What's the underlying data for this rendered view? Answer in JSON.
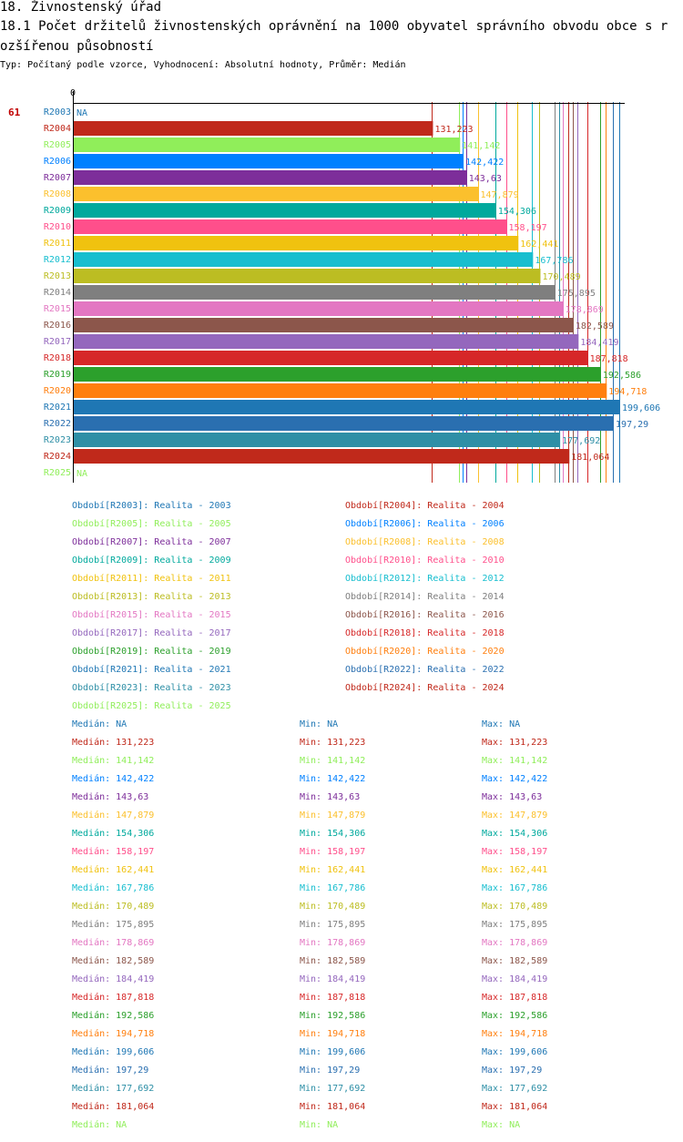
{
  "title": "18. Živnostenský úřad",
  "subtitle": "18.1 Počet držitelů živnostenských oprávnění na 1000 obyvatel správního obvodu obce s rozšířenou působností",
  "description": "Typ: Počítaný podle vzorce, Vyhodnocení: Absolutní hodnoty, Průměr: Medián",
  "rank": "61",
  "chart_data": {
    "type": "bar",
    "orientation": "horizontal",
    "title": "18.1 Počet držitelů živnostenských oprávnění na 1000 obyvatel správního obvodu obce s rozšířenou působností",
    "axis_zero_label": "0",
    "x_min": 0,
    "categories": [
      "R2003",
      "R2004",
      "R2005",
      "R2006",
      "R2007",
      "R2008",
      "R2009",
      "R2010",
      "R2011",
      "R2012",
      "R2013",
      "R2014",
      "R2015",
      "R2016",
      "R2017",
      "R2018",
      "R2019",
      "R2020",
      "R2021",
      "R2022",
      "R2023",
      "R2024",
      "R2025"
    ],
    "values": [
      null,
      131.223,
      141.142,
      142.422,
      143.63,
      147.879,
      154.306,
      158.197,
      162.441,
      167.786,
      170.489,
      175.895,
      178.869,
      182.589,
      184.419,
      187.818,
      192.586,
      194.718,
      199.606,
      197.29,
      177.692,
      181.064,
      null
    ],
    "value_labels": [
      "NA",
      "131,223",
      "141,142",
      "142,422",
      "143,63",
      "147,879",
      "154,306",
      "158,197",
      "162,441",
      "167,786",
      "170,489",
      "175,895",
      "178,869",
      "182,589",
      "184,419",
      "187,818",
      "192,586",
      "194,718",
      "199,606",
      "197,29",
      "177,692",
      "181,064",
      "NA"
    ],
    "colors": [
      "#1f77b4",
      "#c0291b",
      "#90ee5a",
      "#0080ff",
      "#7d2e9a",
      "#fbc02d",
      "#00a99d",
      "#ff4f8b",
      "#f0c20f",
      "#17becf",
      "#bcbd22",
      "#7f7f7f",
      "#e377c2",
      "#8c564b",
      "#9467bd",
      "#d62728",
      "#2ca02c",
      "#ff7f0e",
      "#1f77b4",
      "#2a6fb0",
      "#2e8fa6",
      "#c0291b",
      "#90ee5a"
    ]
  },
  "legend": [
    {
      "label": "Období[R2003]: Realita - 2003",
      "color": "#1f77b4"
    },
    {
      "label": "Období[R2004]: Realita - 2004",
      "color": "#c0291b"
    },
    {
      "label": "Období[R2005]: Realita - 2005",
      "color": "#90ee5a"
    },
    {
      "label": "Období[R2006]: Realita - 2006",
      "color": "#0080ff"
    },
    {
      "label": "Období[R2007]: Realita - 2007",
      "color": "#7d2e9a"
    },
    {
      "label": "Období[R2008]: Realita - 2008",
      "color": "#fbc02d"
    },
    {
      "label": "Období[R2009]: Realita - 2009",
      "color": "#00a99d"
    },
    {
      "label": "Období[R2010]: Realita - 2010",
      "color": "#ff4f8b"
    },
    {
      "label": "Období[R2011]: Realita - 2011",
      "color": "#f0c20f"
    },
    {
      "label": "Období[R2012]: Realita - 2012",
      "color": "#17becf"
    },
    {
      "label": "Období[R2013]: Realita - 2013",
      "color": "#bcbd22"
    },
    {
      "label": "Období[R2014]: Realita - 2014",
      "color": "#7f7f7f"
    },
    {
      "label": "Období[R2015]: Realita - 2015",
      "color": "#e377c2"
    },
    {
      "label": "Období[R2016]: Realita - 2016",
      "color": "#8c564b"
    },
    {
      "label": "Období[R2017]: Realita - 2017",
      "color": "#9467bd"
    },
    {
      "label": "Období[R2018]: Realita - 2018",
      "color": "#d62728"
    },
    {
      "label": "Období[R2019]: Realita - 2019",
      "color": "#2ca02c"
    },
    {
      "label": "Období[R2020]: Realita - 2020",
      "color": "#ff7f0e"
    },
    {
      "label": "Období[R2021]: Realita - 2021",
      "color": "#1f77b4"
    },
    {
      "label": "Období[R2022]: Realita - 2022",
      "color": "#2a6fb0"
    },
    {
      "label": "Období[R2023]: Realita - 2023",
      "color": "#2e8fa6"
    },
    {
      "label": "Období[R2024]: Realita - 2024",
      "color": "#c0291b"
    },
    {
      "label": "Období[R2025]: Realita - 2025",
      "color": "#90ee5a"
    }
  ],
  "stats_labels": {
    "median": "Medián: ",
    "min": "Min: ",
    "max": "Max: "
  },
  "stats": [
    {
      "median": "NA",
      "min": "NA",
      "max": "NA"
    },
    {
      "median": "131,223",
      "min": "131,223",
      "max": "131,223"
    },
    {
      "median": "141,142",
      "min": "141,142",
      "max": "141,142"
    },
    {
      "median": "142,422",
      "min": "142,422",
      "max": "142,422"
    },
    {
      "median": "143,63",
      "min": "143,63",
      "max": "143,63"
    },
    {
      "median": "147,879",
      "min": "147,879",
      "max": "147,879"
    },
    {
      "median": "154,306",
      "min": "154,306",
      "max": "154,306"
    },
    {
      "median": "158,197",
      "min": "158,197",
      "max": "158,197"
    },
    {
      "median": "162,441",
      "min": "162,441",
      "max": "162,441"
    },
    {
      "median": "167,786",
      "min": "167,786",
      "max": "167,786"
    },
    {
      "median": "170,489",
      "min": "170,489",
      "max": "170,489"
    },
    {
      "median": "175,895",
      "min": "175,895",
      "max": "175,895"
    },
    {
      "median": "178,869",
      "min": "178,869",
      "max": "178,869"
    },
    {
      "median": "182,589",
      "min": "182,589",
      "max": "182,589"
    },
    {
      "median": "184,419",
      "min": "184,419",
      "max": "184,419"
    },
    {
      "median": "187,818",
      "min": "187,818",
      "max": "187,818"
    },
    {
      "median": "192,586",
      "min": "192,586",
      "max": "192,586"
    },
    {
      "median": "194,718",
      "min": "194,718",
      "max": "194,718"
    },
    {
      "median": "199,606",
      "min": "199,606",
      "max": "199,606"
    },
    {
      "median": "197,29",
      "min": "197,29",
      "max": "197,29"
    },
    {
      "median": "177,692",
      "min": "177,692",
      "max": "177,692"
    },
    {
      "median": "181,064",
      "min": "181,064",
      "max": "181,064"
    },
    {
      "median": "NA",
      "min": "NA",
      "max": "NA"
    }
  ]
}
